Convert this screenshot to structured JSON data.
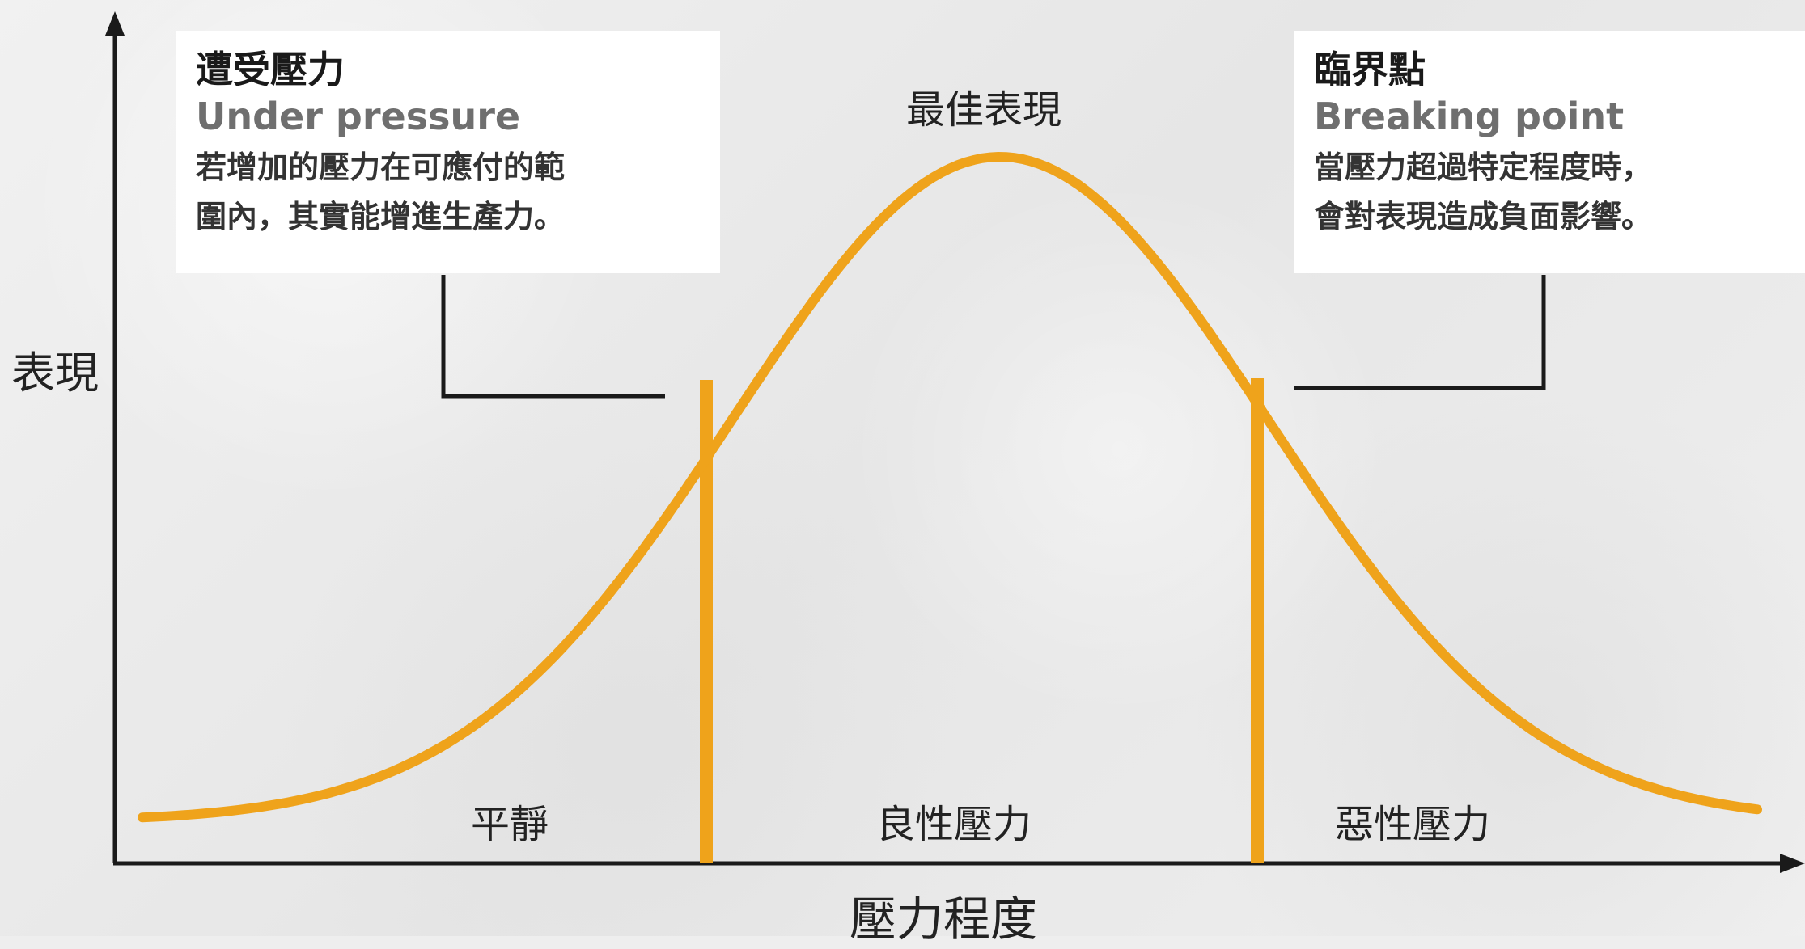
{
  "background": {
    "paper_color": "#eeeeee"
  },
  "colors": {
    "curve": "#efa31b",
    "axis": "#1a1a1a",
    "leader": "#1a1a1a"
  },
  "callouts": {
    "under_pressure": {
      "title": "遭受壓力",
      "subtitle": "Under pressure",
      "line1": "若增加的壓力在可應付的範",
      "line2": "圍內，其實能增進生產力。"
    },
    "breaking_point": {
      "title": "臨界點",
      "subtitle": "Breaking point",
      "line1": "當壓力超過特定程度時，",
      "line2": "會對表現造成負面影響。"
    }
  },
  "labels": {
    "peak": "最佳表現",
    "y_axis": "表現",
    "x_axis": "壓力程度"
  },
  "zones": {
    "calm": "平靜",
    "good_stress": "良性壓力",
    "bad_stress": "惡性壓力"
  }
}
